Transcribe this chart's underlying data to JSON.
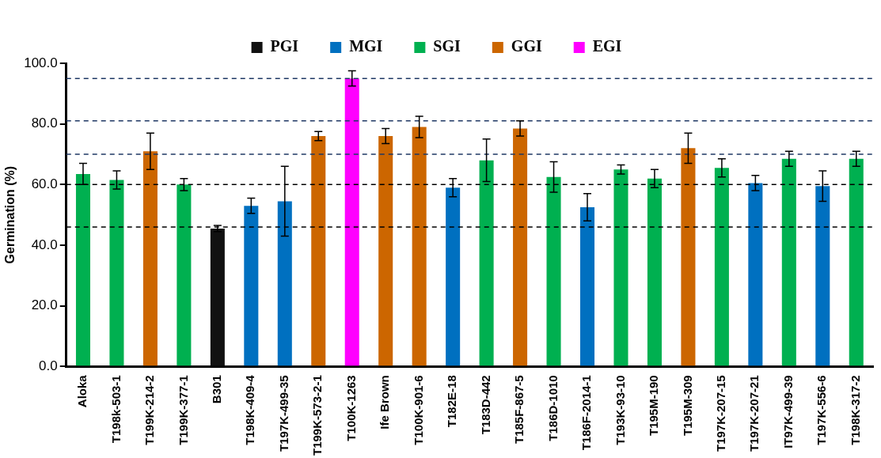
{
  "chart_data": {
    "type": "bar",
    "stacked": true,
    "ylabel": "Germination (%)",
    "categories": [
      "Aloka",
      "T198k-503-1",
      "T199K-214-2",
      "T199K-377-1",
      "B301",
      "T198K-409-4",
      "T197K-499-35",
      "T199K-573-2-1",
      "T100K-1263",
      "Ife Brown",
      "T100K-901-6",
      "T182E-18",
      "T183D-442",
      "T185F-867-5",
      "T186D-1010",
      "T186F-2014-1",
      "T193K-93-10",
      "T195M-190",
      "T195M-309",
      "T197K-207-15",
      "T197K-207-21",
      "IT97K-499-39",
      "T197K-556-6",
      "T198K-317-2"
    ],
    "series": [
      {
        "name": "PGI",
        "color": "#111111",
        "values": [
          null,
          null,
          null,
          null,
          45.5,
          null,
          null,
          null,
          null,
          null,
          null,
          null,
          null,
          null,
          null,
          null,
          null,
          null,
          null,
          null,
          null,
          null,
          null,
          null
        ],
        "errors": [
          null,
          null,
          null,
          null,
          1,
          null,
          null,
          null,
          null,
          null,
          null,
          null,
          null,
          null,
          null,
          null,
          null,
          null,
          null,
          null,
          null,
          null,
          null,
          null
        ]
      },
      {
        "name": "MGI",
        "color": "#0070c0",
        "values": [
          null,
          null,
          null,
          null,
          null,
          53,
          54.5,
          null,
          null,
          null,
          null,
          59,
          null,
          null,
          null,
          52.5,
          null,
          null,
          null,
          null,
          60.5,
          null,
          59.5,
          null
        ],
        "errors": [
          null,
          null,
          null,
          null,
          null,
          2.5,
          11.5,
          null,
          null,
          null,
          null,
          3,
          null,
          null,
          null,
          4.5,
          null,
          null,
          null,
          null,
          2.5,
          null,
          5,
          null
        ]
      },
      {
        "name": "SGI",
        "color": "#00b050",
        "values": [
          63.5,
          61.5,
          null,
          60,
          null,
          null,
          null,
          null,
          null,
          null,
          null,
          null,
          68,
          null,
          62.5,
          null,
          65,
          62,
          null,
          65.5,
          null,
          68.5,
          null,
          68.5
        ],
        "errors": [
          3.5,
          3,
          null,
          2,
          null,
          null,
          null,
          null,
          null,
          null,
          null,
          null,
          7,
          null,
          5,
          null,
          1.5,
          3,
          null,
          3,
          null,
          2.5,
          null,
          2.5
        ]
      },
      {
        "name": "GGI",
        "color": "#cc6600",
        "values": [
          null,
          null,
          71,
          null,
          null,
          null,
          null,
          76,
          null,
          76,
          79,
          null,
          null,
          78.5,
          null,
          null,
          null,
          null,
          72,
          null,
          null,
          null,
          null,
          null
        ],
        "errors": [
          null,
          null,
          6,
          null,
          null,
          null,
          null,
          1.5,
          null,
          2.5,
          3.5,
          null,
          null,
          2.5,
          null,
          null,
          null,
          null,
          5,
          null,
          null,
          null,
          null,
          null
        ]
      },
      {
        "name": "EGI",
        "color": "#ff00ff",
        "values": [
          null,
          null,
          null,
          null,
          null,
          null,
          null,
          null,
          95,
          null,
          null,
          null,
          null,
          null,
          null,
          null,
          null,
          null,
          null,
          null,
          null,
          null,
          null,
          null
        ],
        "errors": [
          null,
          null,
          null,
          null,
          null,
          null,
          null,
          null,
          2.5,
          null,
          null,
          null,
          null,
          null,
          null,
          null,
          null,
          null,
          null,
          null,
          null,
          null,
          null,
          null
        ]
      }
    ],
    "ylim": [
      0,
      100
    ],
    "yticks": [
      {
        "value": 0,
        "label": "0.0"
      },
      {
        "value": 20,
        "label": "20.0"
      },
      {
        "value": 40,
        "label": "40.0"
      },
      {
        "value": 60,
        "label": "60.0"
      },
      {
        "value": 80,
        "label": "80.0"
      },
      {
        "value": 100,
        "label": "100.0"
      }
    ],
    "ref_lines": [
      {
        "axis": "y",
        "value": 95,
        "color": "#1f3864",
        "line_style": "dashed"
      },
      {
        "axis": "y",
        "value": 81,
        "color": "#1f3864",
        "line_style": "dashed"
      },
      {
        "axis": "y",
        "value": 70,
        "color": "#1f3864",
        "line_style": "dashed"
      },
      {
        "axis": "y",
        "value": 60,
        "color": "#000000",
        "line_style": "dashed"
      },
      {
        "axis": "y",
        "value": 46,
        "color": "#000000",
        "line_style": "dashed"
      }
    ],
    "legend": "top",
    "grid": false
  }
}
